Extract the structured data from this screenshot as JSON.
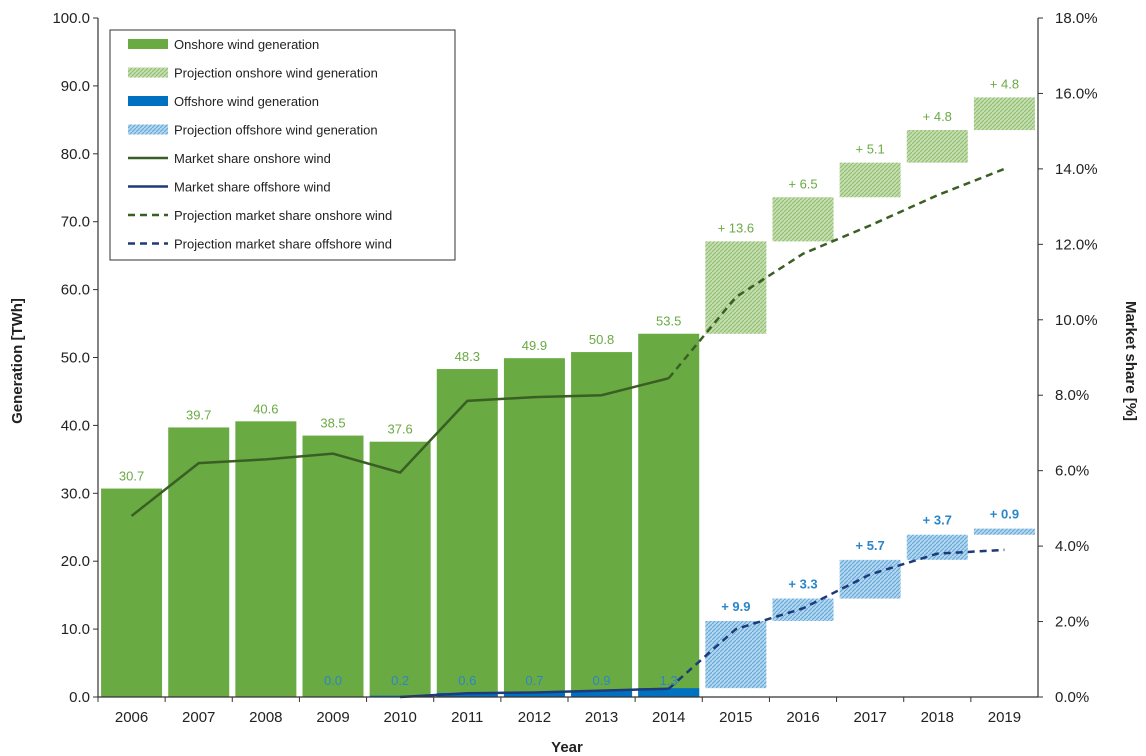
{
  "chart_data": {
    "type": "bar",
    "title": "",
    "xlabel": "Year",
    "ylabel": "Generation [TWh]",
    "y2label": "Market share [%]",
    "ylim": [
      0,
      100
    ],
    "y2lim": [
      0,
      18
    ],
    "yticks": [
      "0.0",
      "10.0",
      "20.0",
      "30.0",
      "40.0",
      "50.0",
      "60.0",
      "70.0",
      "80.0",
      "90.0",
      "100.0"
    ],
    "y2ticks": [
      "0.0%",
      "2.0%",
      "4.0%",
      "6.0%",
      "8.0%",
      "10.0%",
      "12.0%",
      "14.0%",
      "16.0%",
      "18.0%"
    ],
    "categories": [
      "2006",
      "2007",
      "2008",
      "2009",
      "2010",
      "2011",
      "2012",
      "2013",
      "2014",
      "2015",
      "2016",
      "2017",
      "2018",
      "2019"
    ],
    "legend_position": "top-left",
    "grid": false,
    "colors": {
      "onshore": "#6aaa43",
      "onshore_projection": "#b9d7a0",
      "offshore": "#0070c0",
      "offshore_projection": "#9ccbe8",
      "share_onshore": "#3a5f24",
      "share_offshore": "#1f3a78",
      "label_onshore": "#6aaa43",
      "label_offshore": "#2a86c8"
    },
    "legend": [
      {
        "label": "Onshore wind generation",
        "kind": "bar",
        "series": "onshore"
      },
      {
        "label": "Projection onshore wind generation",
        "kind": "hatch",
        "series": "onshore_projection"
      },
      {
        "label": "Offshore wind generation",
        "kind": "bar",
        "series": "offshore"
      },
      {
        "label": "Projection offshore wind generation",
        "kind": "hatch",
        "series": "offshore_projection"
      },
      {
        "label": "Market share onshore wind",
        "kind": "line",
        "series": "share_onshore"
      },
      {
        "label": "Market share offshore wind",
        "kind": "line",
        "series": "share_offshore"
      },
      {
        "label": "Projection market share onshore wind",
        "kind": "dashed",
        "series": "share_onshore"
      },
      {
        "label": "Projection market share offshore wind",
        "kind": "dashed",
        "series": "share_offshore"
      }
    ],
    "onshore_generation": {
      "years": [
        "2006",
        "2007",
        "2008",
        "2009",
        "2010",
        "2011",
        "2012",
        "2013",
        "2014"
      ],
      "values": [
        30.7,
        39.7,
        40.6,
        38.5,
        37.6,
        48.3,
        49.9,
        50.8,
        53.5
      ],
      "labels": [
        "30.7",
        "39.7",
        "40.6",
        "38.5",
        "37.6",
        "48.3",
        "49.9",
        "50.8",
        "53.5"
      ]
    },
    "offshore_generation": {
      "years": [
        "2009",
        "2010",
        "2011",
        "2012",
        "2013",
        "2014"
      ],
      "values": [
        0.0,
        0.2,
        0.6,
        0.7,
        0.9,
        1.3
      ],
      "labels": [
        "0.0",
        "0.2",
        "0.6",
        "0.7",
        "0.9",
        "1.3"
      ]
    },
    "projection_onshore": {
      "years": [
        "2015",
        "2016",
        "2017",
        "2018",
        "2019"
      ],
      "from": [
        53.5,
        67.1,
        73.6,
        78.7,
        83.5
      ],
      "to": [
        67.1,
        73.6,
        78.7,
        83.5,
        88.3
      ],
      "labels": [
        "+ 13.6",
        "+ 6.5",
        "+ 5.1",
        "+ 4.8",
        "+ 4.8"
      ]
    },
    "projection_offshore": {
      "years": [
        "2015",
        "2016",
        "2017",
        "2018",
        "2019"
      ],
      "from": [
        1.3,
        11.2,
        14.5,
        20.2,
        23.9
      ],
      "to": [
        11.2,
        14.5,
        20.2,
        23.9,
        24.8
      ],
      "labels": [
        "+ 9.9",
        "+ 3.3",
        "+ 5.7",
        "+ 3.7",
        "+ 0.9"
      ]
    },
    "market_share_onshore": {
      "years": [
        "2006",
        "2007",
        "2008",
        "2009",
        "2010",
        "2011",
        "2012",
        "2013",
        "2014"
      ],
      "values": [
        4.8,
        6.2,
        6.3,
        6.45,
        5.95,
        7.85,
        7.95,
        8.0,
        8.45
      ]
    },
    "projection_market_share_onshore": {
      "years": [
        "2014",
        "2015",
        "2016",
        "2017",
        "2018",
        "2019"
      ],
      "values": [
        8.45,
        10.6,
        11.75,
        12.5,
        13.3,
        14.0
      ]
    },
    "market_share_offshore": {
      "years": [
        "2010",
        "2011",
        "2012",
        "2013",
        "2014"
      ],
      "values": [
        0.0,
        0.1,
        0.12,
        0.17,
        0.22
      ]
    },
    "projection_market_share_offshore": {
      "years": [
        "2014",
        "2015",
        "2016",
        "2017",
        "2018",
        "2019"
      ],
      "values": [
        0.22,
        1.8,
        2.35,
        3.25,
        3.8,
        3.9
      ]
    }
  }
}
